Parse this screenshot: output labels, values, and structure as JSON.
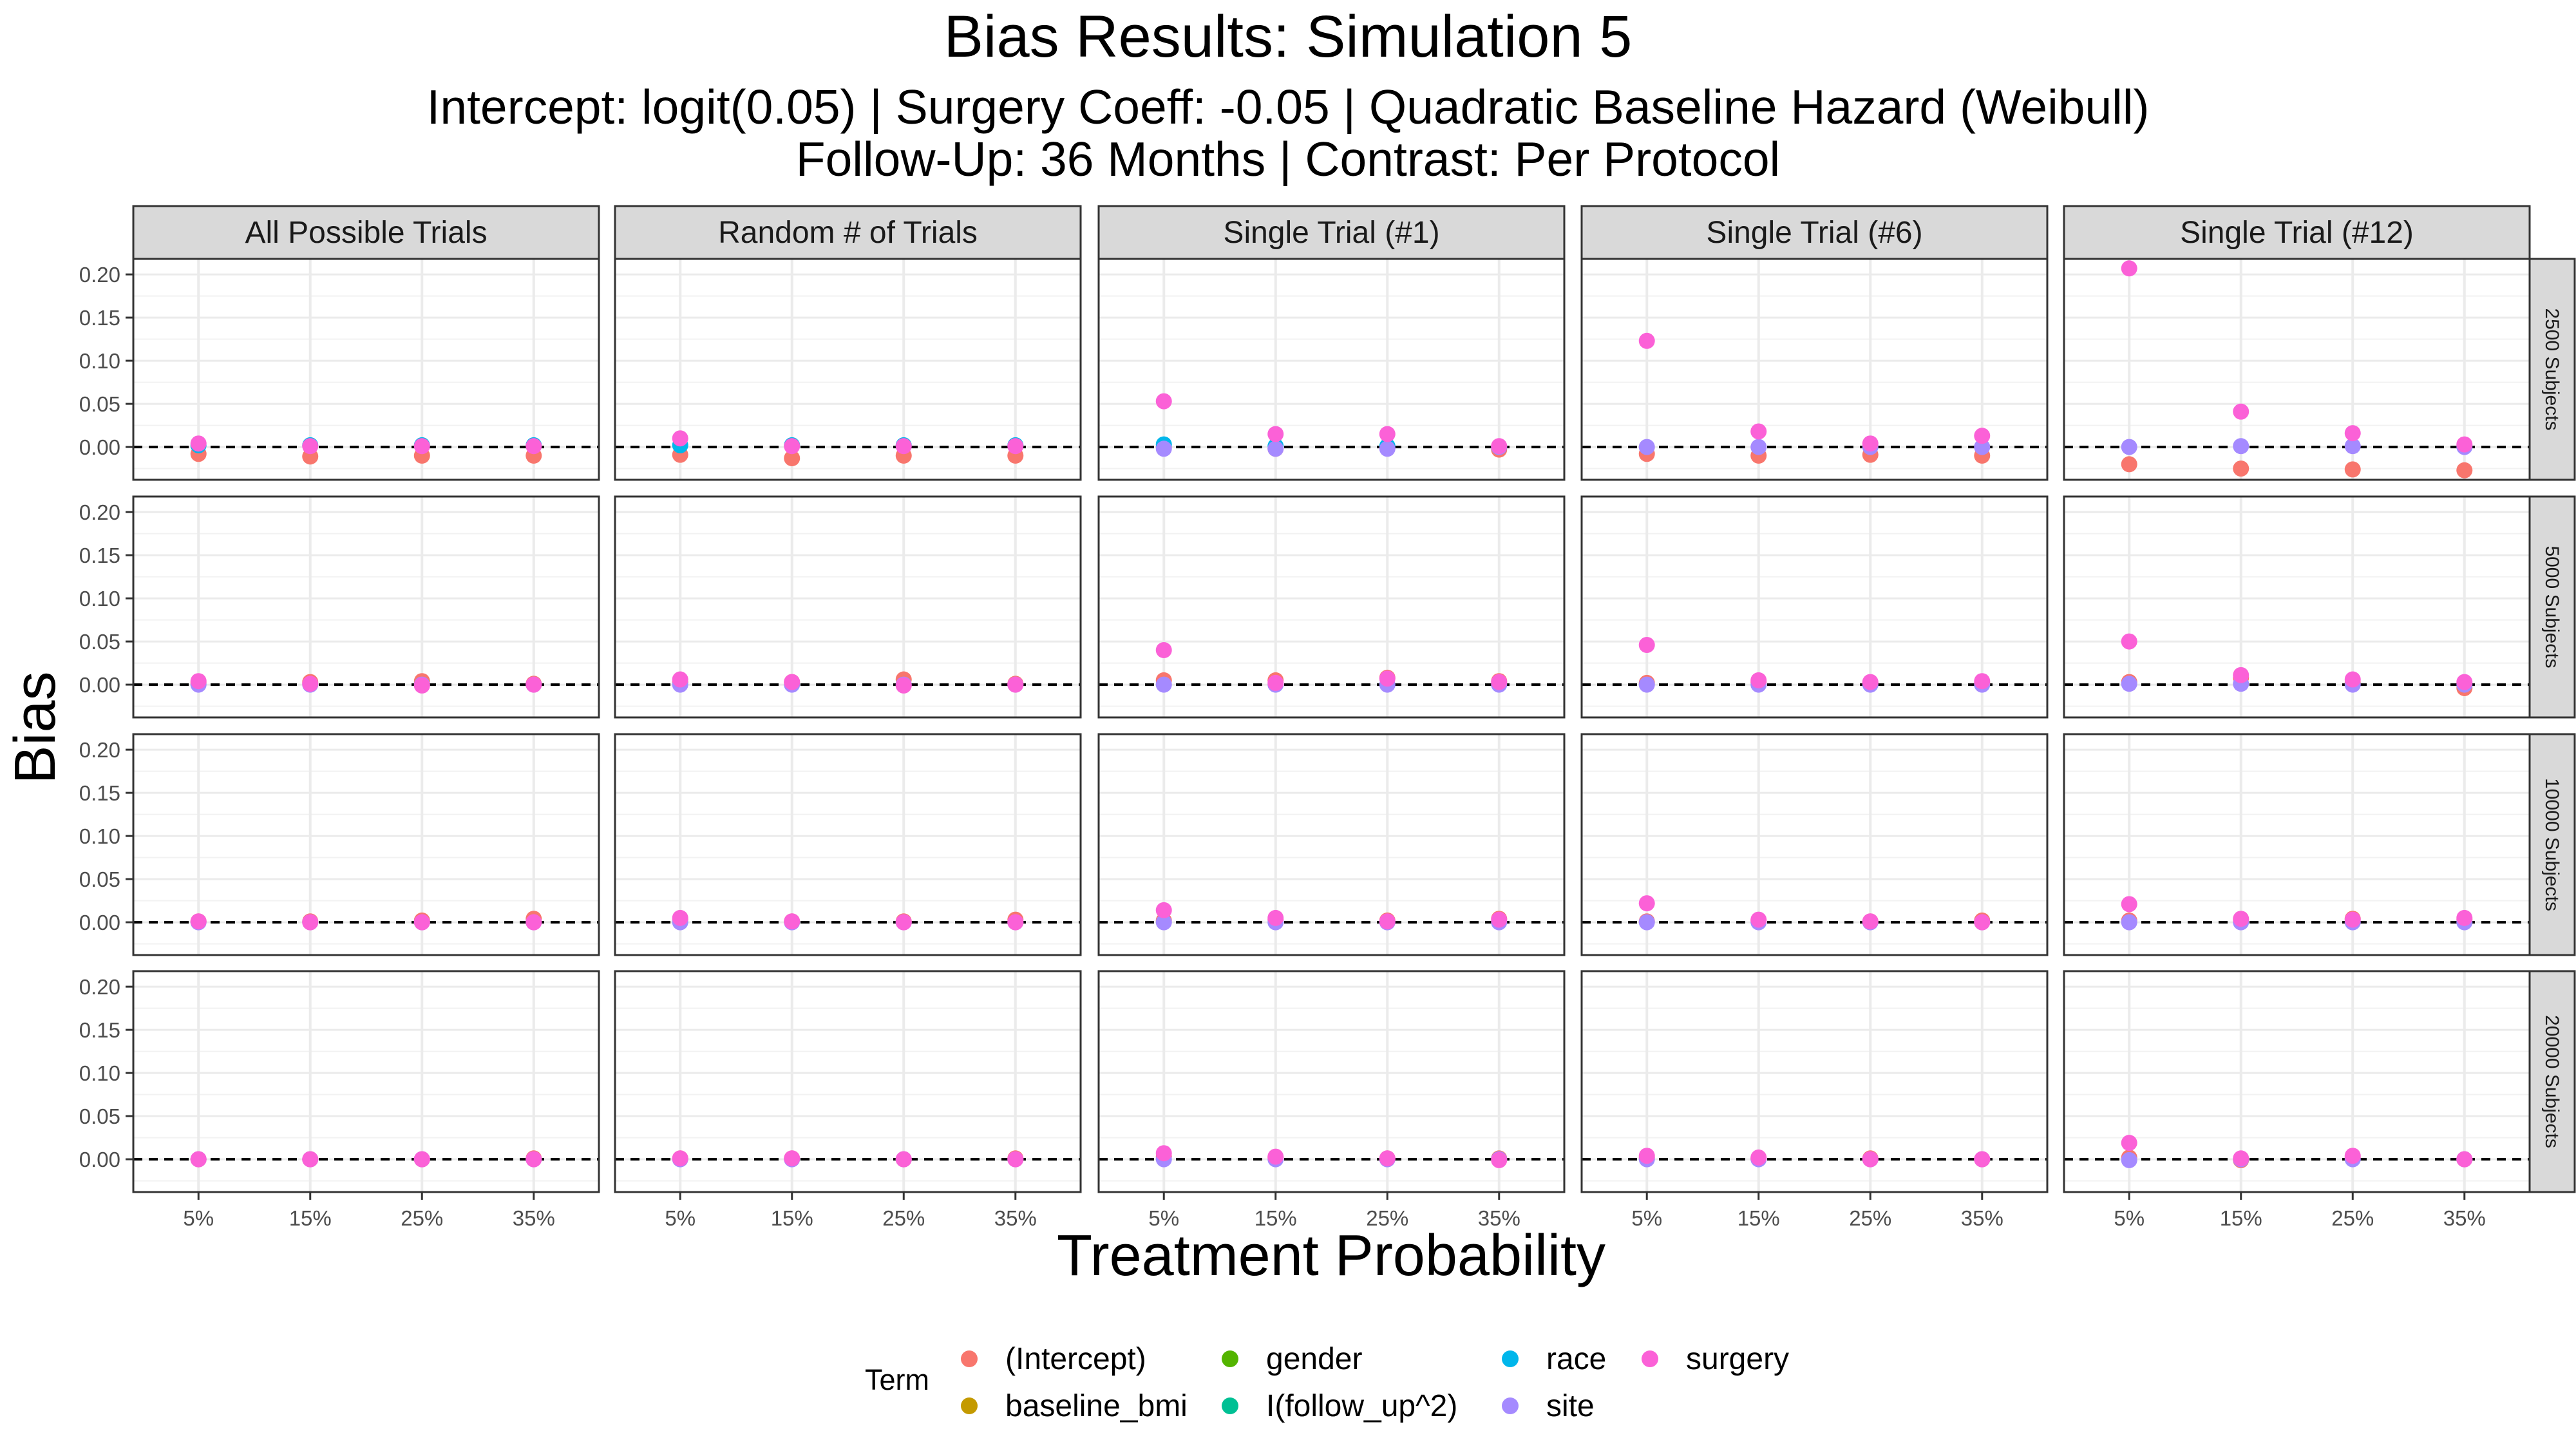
{
  "title": "Bias Results: Simulation 5",
  "subtitle_line1": "Intercept: logit(0.05) | Surgery Coeff: -0.05 | Quadratic Baseline Hazard (Weibull)",
  "subtitle_line2": "Follow-Up: 36 Months | Contrast: Per Protocol",
  "colors": {
    "(Intercept)": "#F8766D",
    "baseline_bmi": "#C49A00",
    "gender": "#53B400",
    "I(follow_up^2)": "#00C094",
    "race": "#00B6EB",
    "site": "#A58AFF",
    "surgery": "#FB61D7"
  },
  "chart_data": {
    "type": "scatter",
    "xlabel": "Treatment Probability",
    "ylabel": "Bias",
    "x_categories": [
      "5%",
      "15%",
      "25%",
      "35%"
    ],
    "y_ticks": [
      "0.00",
      "0.05",
      "0.10",
      "0.15",
      "0.20"
    ],
    "ylim": [
      -0.038,
      0.218
    ],
    "grid": true,
    "reference_line": 0,
    "col_facets": [
      "All Possible Trials",
      "Random # of Trials",
      "Single Trial (#1)",
      "Single Trial (#6)",
      "Single Trial (#12)"
    ],
    "row_facets": [
      "2500 Subjects",
      "5000 Subjects",
      "10000 Subjects",
      "20000 Subjects"
    ],
    "legend": {
      "title": "Term",
      "position": "bottom",
      "entries": [
        "(Intercept)",
        "baseline_bmi",
        "gender",
        "I(follow_up^2)",
        "race",
        "site",
        "surgery"
      ]
    },
    "points": [
      [
        "2500 Subjects",
        "All Possible Trials",
        "(Intercept)",
        [
          -0.008,
          -0.011,
          -0.01,
          -0.01
        ]
      ],
      [
        "2500 Subjects",
        "All Possible Trials",
        "race",
        [
          0.002,
          0.002,
          0.002,
          0.002
        ]
      ],
      [
        "2500 Subjects",
        "All Possible Trials",
        "surgery",
        [
          0.004,
          0.001,
          0.001,
          0.001
        ]
      ],
      [
        "2500 Subjects",
        "Random # of Trials",
        "(Intercept)",
        [
          -0.009,
          -0.013,
          -0.01,
          -0.01
        ]
      ],
      [
        "2500 Subjects",
        "Random # of Trials",
        "race",
        [
          0.002,
          0.002,
          0.002,
          0.002
        ]
      ],
      [
        "2500 Subjects",
        "Random # of Trials",
        "surgery",
        [
          0.01,
          0.001,
          0.001,
          0.001
        ]
      ],
      [
        "2500 Subjects",
        "Single Trial (#1)",
        "(Intercept)",
        [
          0.0,
          -0.002,
          -0.001,
          -0.003
        ]
      ],
      [
        "2500 Subjects",
        "Single Trial (#1)",
        "race",
        [
          0.003,
          0.001,
          0.001,
          0.0
        ]
      ],
      [
        "2500 Subjects",
        "Single Trial (#1)",
        "site",
        [
          -0.002,
          -0.002,
          -0.002,
          0.0
        ]
      ],
      [
        "2500 Subjects",
        "Single Trial (#1)",
        "surgery",
        [
          0.053,
          0.015,
          0.015,
          0.001
        ]
      ],
      [
        "2500 Subjects",
        "Single Trial (#6)",
        "(Intercept)",
        [
          -0.008,
          -0.01,
          -0.009,
          -0.01
        ]
      ],
      [
        "2500 Subjects",
        "Single Trial (#6)",
        "site",
        [
          0.0,
          0.0,
          0.0,
          0.0
        ]
      ],
      [
        "2500 Subjects",
        "Single Trial (#6)",
        "surgery",
        [
          0.123,
          0.018,
          0.004,
          0.013
        ]
      ],
      [
        "2500 Subjects",
        "Single Trial (#12)",
        "(Intercept)",
        [
          -0.02,
          -0.025,
          -0.026,
          -0.027
        ]
      ],
      [
        "2500 Subjects",
        "Single Trial (#12)",
        "site",
        [
          0.0,
          0.001,
          0.001,
          0.0
        ]
      ],
      [
        "2500 Subjects",
        "Single Trial (#12)",
        "surgery",
        [
          0.207,
          0.041,
          0.016,
          0.003
        ]
      ],
      [
        "5000 Subjects",
        "All Possible Trials",
        "(Intercept)",
        [
          0.002,
          0.003,
          0.004,
          0.001
        ]
      ],
      [
        "5000 Subjects",
        "All Possible Trials",
        "site",
        [
          0.0,
          0.0,
          0.0,
          0.0
        ]
      ],
      [
        "5000 Subjects",
        "All Possible Trials",
        "surgery",
        [
          0.004,
          0.001,
          -0.001,
          0.0
        ]
      ],
      [
        "5000 Subjects",
        "Random # of Trials",
        "(Intercept)",
        [
          0.003,
          0.003,
          0.006,
          0.001
        ]
      ],
      [
        "5000 Subjects",
        "Random # of Trials",
        "site",
        [
          0.0,
          0.0,
          0.0,
          0.0
        ]
      ],
      [
        "5000 Subjects",
        "Random # of Trials",
        "surgery",
        [
          0.006,
          0.003,
          -0.001,
          0.0
        ]
      ],
      [
        "5000 Subjects",
        "Single Trial (#1)",
        "(Intercept)",
        [
          0.005,
          0.005,
          0.008,
          0.004
        ]
      ],
      [
        "5000 Subjects",
        "Single Trial (#1)",
        "site",
        [
          0.0,
          0.0,
          0.0,
          0.0
        ]
      ],
      [
        "5000 Subjects",
        "Single Trial (#1)",
        "surgery",
        [
          0.04,
          0.002,
          0.007,
          0.003
        ]
      ],
      [
        "5000 Subjects",
        "Single Trial (#6)",
        "(Intercept)",
        [
          0.002,
          0.003,
          0.002,
          0.002
        ]
      ],
      [
        "5000 Subjects",
        "Single Trial (#6)",
        "site",
        [
          0.0,
          0.0,
          0.0,
          0.0
        ]
      ],
      [
        "5000 Subjects",
        "Single Trial (#6)",
        "surgery",
        [
          0.046,
          0.005,
          0.003,
          0.004
        ]
      ],
      [
        "5000 Subjects",
        "Single Trial (#12)",
        "(Intercept)",
        [
          0.003,
          0.008,
          0.002,
          -0.004
        ]
      ],
      [
        "5000 Subjects",
        "Single Trial (#12)",
        "site",
        [
          0.001,
          0.001,
          0.0,
          0.0
        ]
      ],
      [
        "5000 Subjects",
        "Single Trial (#12)",
        "surgery",
        [
          0.05,
          0.011,
          0.006,
          0.003
        ]
      ],
      [
        "10000 Subjects",
        "All Possible Trials",
        "(Intercept)",
        [
          0.001,
          0.001,
          0.002,
          0.004
        ]
      ],
      [
        "10000 Subjects",
        "All Possible Trials",
        "site",
        [
          0.0,
          0.0,
          0.0,
          0.0
        ]
      ],
      [
        "10000 Subjects",
        "All Possible Trials",
        "surgery",
        [
          0.001,
          0.0,
          0.0,
          0.0
        ]
      ],
      [
        "10000 Subjects",
        "Random # of Trials",
        "(Intercept)",
        [
          0.003,
          0.001,
          0.001,
          0.003
        ]
      ],
      [
        "10000 Subjects",
        "Random # of Trials",
        "site",
        [
          0.0,
          0.0,
          0.0,
          0.0
        ]
      ],
      [
        "10000 Subjects",
        "Random # of Trials",
        "surgery",
        [
          0.005,
          0.001,
          0.0,
          0.0
        ]
      ],
      [
        "10000 Subjects",
        "Single Trial (#1)",
        "(Intercept)",
        [
          0.002,
          0.003,
          0.002,
          0.004
        ]
      ],
      [
        "10000 Subjects",
        "Single Trial (#1)",
        "site",
        [
          0.0,
          0.0,
          0.0,
          0.0
        ]
      ],
      [
        "10000 Subjects",
        "Single Trial (#1)",
        "surgery",
        [
          0.014,
          0.005,
          0.001,
          0.003
        ]
      ],
      [
        "10000 Subjects",
        "Single Trial (#6)",
        "(Intercept)",
        [
          0.001,
          0.002,
          0.001,
          0.002
        ]
      ],
      [
        "10000 Subjects",
        "Single Trial (#6)",
        "site",
        [
          0.0,
          0.0,
          0.0,
          0.0
        ]
      ],
      [
        "10000 Subjects",
        "Single Trial (#6)",
        "surgery",
        [
          0.022,
          0.003,
          0.001,
          0.0
        ]
      ],
      [
        "10000 Subjects",
        "Single Trial (#12)",
        "(Intercept)",
        [
          0.002,
          0.003,
          0.004,
          0.003
        ]
      ],
      [
        "10000 Subjects",
        "Single Trial (#12)",
        "site",
        [
          0.0,
          0.0,
          0.0,
          0.0
        ]
      ],
      [
        "10000 Subjects",
        "Single Trial (#12)",
        "surgery",
        [
          0.021,
          0.004,
          0.003,
          0.005
        ]
      ],
      [
        "20000 Subjects",
        "All Possible Trials",
        "(Intercept)",
        [
          0.0,
          0.0,
          0.0,
          0.001
        ]
      ],
      [
        "20000 Subjects",
        "All Possible Trials",
        "site",
        [
          0.0,
          0.0,
          0.0,
          0.0
        ]
      ],
      [
        "20000 Subjects",
        "All Possible Trials",
        "surgery",
        [
          0.0,
          0.0,
          0.0,
          0.0
        ]
      ],
      [
        "20000 Subjects",
        "Random # of Trials",
        "(Intercept)",
        [
          0.001,
          0.001,
          0.0,
          0.001
        ]
      ],
      [
        "20000 Subjects",
        "Random # of Trials",
        "site",
        [
          0.0,
          0.0,
          0.0,
          0.0
        ]
      ],
      [
        "20000 Subjects",
        "Random # of Trials",
        "surgery",
        [
          0.001,
          0.001,
          0.0,
          0.0
        ]
      ],
      [
        "20000 Subjects",
        "Single Trial (#1)",
        "(Intercept)",
        [
          0.003,
          0.002,
          0.001,
          0.001
        ]
      ],
      [
        "20000 Subjects",
        "Single Trial (#1)",
        "site",
        [
          0.0,
          0.0,
          0.0,
          0.0
        ]
      ],
      [
        "20000 Subjects",
        "Single Trial (#1)",
        "surgery",
        [
          0.007,
          0.003,
          0.001,
          -0.001
        ]
      ],
      [
        "20000 Subjects",
        "Single Trial (#6)",
        "(Intercept)",
        [
          0.002,
          0.001,
          0.001,
          0.0
        ]
      ],
      [
        "20000 Subjects",
        "Single Trial (#6)",
        "site",
        [
          0.0,
          0.0,
          0.0,
          0.0
        ]
      ],
      [
        "20000 Subjects",
        "Single Trial (#6)",
        "surgery",
        [
          0.004,
          0.002,
          0.0,
          0.0
        ]
      ],
      [
        "20000 Subjects",
        "Single Trial (#12)",
        "(Intercept)",
        [
          0.002,
          -0.001,
          0.002,
          0.0
        ]
      ],
      [
        "20000 Subjects",
        "Single Trial (#12)",
        "site",
        [
          -0.001,
          0.0,
          0.0,
          0.0
        ]
      ],
      [
        "20000 Subjects",
        "Single Trial (#12)",
        "surgery",
        [
          0.019,
          0.001,
          0.004,
          0.0
        ]
      ]
    ]
  }
}
